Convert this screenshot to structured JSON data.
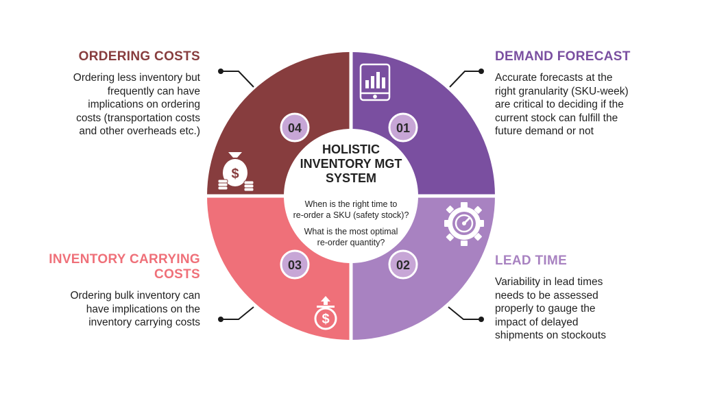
{
  "center": {
    "title_line1": "HOLISTIC",
    "title_line2": "INVENTORY MGT",
    "title_line3": "SYSTEM",
    "question1_line1": "When is the right time to",
    "question1_line2": "re-order a SKU (safety stock)?",
    "question2_line1": "What is the most optimal",
    "question2_line2": "re-order quantity?"
  },
  "segments": {
    "demand_forecast": {
      "number": "01",
      "heading": "DEMAND FORECAST",
      "desc_lines": [
        "Accurate forecasts at the",
        "right granularity (SKU-week)",
        "are critical to deciding if the",
        "current stock can fulfill the",
        "future demand or not"
      ],
      "color": "#7a4fa0",
      "icon": "tablet-chart-icon"
    },
    "lead_time": {
      "number": "02",
      "heading": "LEAD TIME",
      "desc_lines": [
        "Variability in lead times",
        "needs to be assessed",
        "properly to gauge the",
        "impact of delayed",
        "shipments on stockouts"
      ],
      "color": "#a882c1",
      "icon": "gear-gauge-icon"
    },
    "inventory_carrying_costs": {
      "number": "03",
      "heading_line1": "INVENTORY CARRYING",
      "heading_line2": "COSTS",
      "desc_lines": [
        "Ordering bulk inventory can",
        "have implications on the",
        "inventory carrying costs"
      ],
      "color": "#ef7079",
      "icon": "dollar-upload-icon"
    },
    "ordering_costs": {
      "number": "04",
      "heading": "ORDERING COSTS",
      "desc_lines": [
        "Ordering less inventory but",
        "frequently can have",
        "implications on ordering",
        "costs (transportation costs",
        "and other overheads etc.)"
      ],
      "color": "#873d3e",
      "icon": "money-bag-coins-icon"
    }
  },
  "badge_color": "#c7a6d6"
}
